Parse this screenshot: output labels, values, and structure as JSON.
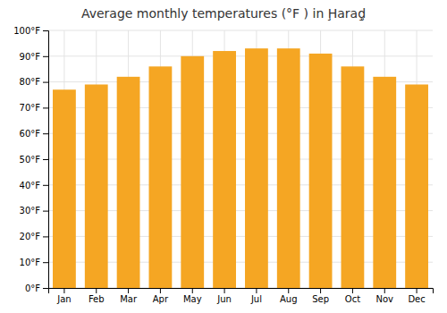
{
  "chart_data": {
    "type": "bar",
    "title": "Average monthly temperatures (°F ) in Ḩaraḑ̧",
    "categories": [
      "Jan",
      "Feb",
      "Mar",
      "Apr",
      "May",
      "Jun",
      "Jul",
      "Aug",
      "Sep",
      "Oct",
      "Nov",
      "Dec"
    ],
    "values": [
      77,
      79,
      82,
      86,
      90,
      92,
      93,
      93,
      91,
      86,
      82,
      79
    ],
    "color": "#F5A623",
    "ylim": [
      0,
      100
    ],
    "yticks": [
      {
        "value": 0,
        "label": "0°F"
      },
      {
        "value": 10,
        "label": "10°F"
      },
      {
        "value": 20,
        "label": "20°F"
      },
      {
        "value": 30,
        "label": "30°F"
      },
      {
        "value": 40,
        "label": "40°F"
      },
      {
        "value": 50,
        "label": "50°F"
      },
      {
        "value": 60,
        "label": "60°F"
      },
      {
        "value": 70,
        "label": "70°F"
      },
      {
        "value": 80,
        "label": "80°F"
      },
      {
        "value": 90,
        "label": "90°F"
      },
      {
        "value": 100,
        "label": "100°F"
      }
    ],
    "grid": true
  }
}
